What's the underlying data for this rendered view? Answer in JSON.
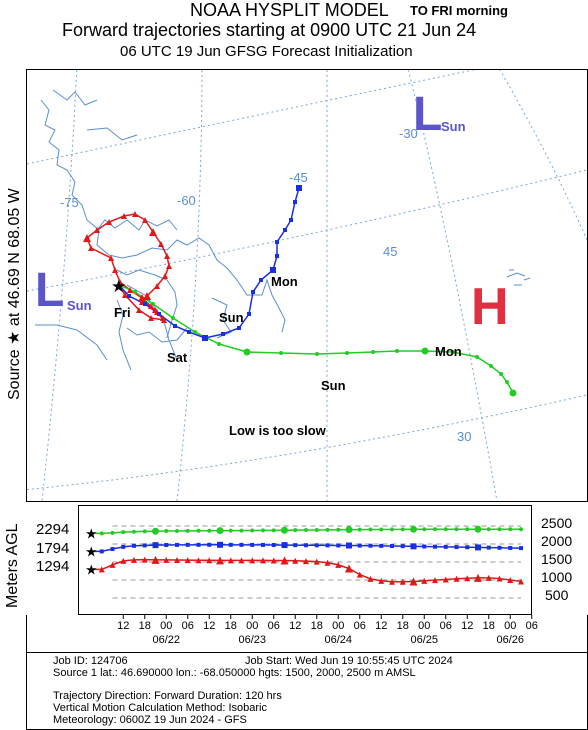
{
  "header": {
    "title_line1": "NOAA HYSPLIT MODEL",
    "note": "TO FRI morning",
    "title_line2": "Forward trajectories starting at 0900 UTC 21 Jun 24",
    "title_line3": "06 UTC 19 Jun    GFSG  Forecast Initialization"
  },
  "side_label": {
    "source_text": "Source ★ at   46.69 N   68.05 W"
  },
  "map": {
    "lon_labels": [
      "-75",
      "-60",
      "-45",
      "-30"
    ],
    "lat_labels": [
      "45",
      "30"
    ],
    "annotations": {
      "low_left": "L",
      "low_left_sub": "Sun",
      "low_top": "L",
      "low_top_sub": "Sun",
      "high": "H",
      "fri": "Fri",
      "sat": "Sat",
      "sun_blue": "Sun",
      "mon_blue": "Mon",
      "mon_green": "Mon",
      "sun_green": "Sun",
      "comment": "Low is too slow"
    },
    "colors": {
      "land": "#5b8fd0",
      "grid": "#7aa7d8",
      "low": "#5a55c8",
      "high": "#e03040"
    }
  },
  "chart_data": {
    "type": "line",
    "title": "Forward trajectories starting at 0900 UTC 21 Jun 24",
    "ylabel": "Meters AGL",
    "start_heights": [
      "2294",
      "1794",
      "1294"
    ],
    "y_ticks": [
      "2500",
      "2000",
      "1500",
      "1000",
      "500"
    ],
    "x_hour_labels": [
      "12",
      "18",
      "00",
      "06",
      "12",
      "18",
      "00",
      "06",
      "12",
      "18",
      "00",
      "06",
      "12",
      "18",
      "00",
      "06",
      "12",
      "18",
      "00",
      "06"
    ],
    "x_date_labels": [
      "06/22",
      "06/23",
      "06/24",
      "06/25",
      "06/26"
    ],
    "x_hours": [
      3,
      6,
      9,
      12,
      15,
      18,
      21,
      24,
      27,
      30,
      33,
      36,
      39,
      42,
      45,
      48,
      51,
      54,
      57,
      60,
      63,
      66,
      69,
      72,
      75,
      78,
      81,
      84,
      87,
      90,
      93,
      96,
      99,
      102,
      105,
      108,
      111,
      114,
      117,
      120
    ],
    "series": [
      {
        "start": "2294",
        "color": "#22cc22",
        "marker": "circle",
        "values": [
          2294,
          2310,
          2330,
          2340,
          2350,
          2355,
          2360,
          2362,
          2365,
          2367,
          2368,
          2370,
          2370,
          2372,
          2375,
          2378,
          2380,
          2382,
          2385,
          2388,
          2390,
          2392,
          2395,
          2398,
          2400,
          2402,
          2404,
          2405,
          2406,
          2408,
          2410,
          2410,
          2410,
          2410,
          2410,
          2410,
          2410,
          2410,
          2410,
          2410
        ]
      },
      {
        "start": "1794",
        "color": "#1a2fe0",
        "marker": "square",
        "values": [
          1794,
          1860,
          1920,
          1950,
          1960,
          1968,
          1972,
          1975,
          1976,
          1977,
          1978,
          1978,
          1977,
          1976,
          1975,
          1974,
          1972,
          1970,
          1968,
          1966,
          1964,
          1962,
          1960,
          1958,
          1955,
          1952,
          1948,
          1944,
          1940,
          1935,
          1930,
          1925,
          1920,
          1915,
          1910,
          1905,
          1900,
          1895,
          1890,
          1885
        ]
      },
      {
        "start": "1294",
        "color": "#e01818",
        "marker": "triangle",
        "values": [
          1294,
          1420,
          1530,
          1560,
          1565,
          1560,
          1558,
          1555,
          1552,
          1550,
          1548,
          1546,
          1545,
          1545,
          1545,
          1544,
          1542,
          1540,
          1535,
          1525,
          1510,
          1480,
          1420,
          1320,
          1150,
          1030,
          975,
          950,
          950,
          960,
          975,
          995,
          1015,
          1035,
          1050,
          1060,
          1058,
          1040,
          1000,
          960
        ]
      }
    ]
  },
  "footer": {
    "line1_left": "Job ID: 124706",
    "line1_right": "Job Start: Wed Jun 19 10:55:45 UTC 2024",
    "line2": "Source 1 lat.: 46.690000   lon.: -68.050000   hgts: 1500, 2000, 2500 m AMSL",
    "line3": "Trajectory Direction: Forward      Duration: 120 hrs",
    "line4": "Vertical Motion Calculation Method:         Isobaric",
    "line5": "Meteorology: 0600Z 19 Jun 2024 - GFS"
  }
}
